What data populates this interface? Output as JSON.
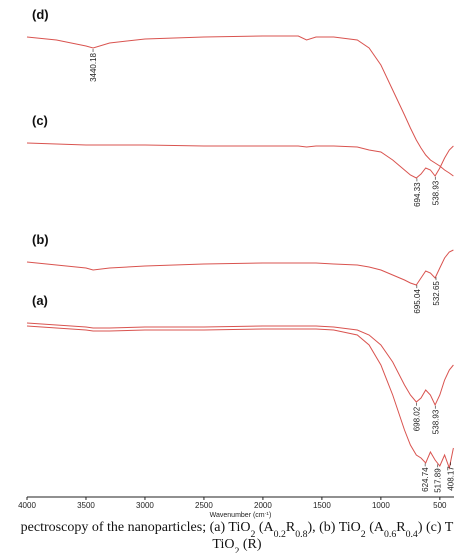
{
  "chart_data": {
    "type": "line",
    "x_label": [
      {
        "text": "Wavenumber (cm"
      },
      {
        "text": "-1",
        "sup": true
      },
      {
        "text": ")"
      }
    ],
    "x": [
      4000,
      3750,
      3500,
      3440,
      3300,
      3000,
      2500,
      2000,
      1700,
      1630,
      1550,
      1400,
      1200,
      1100,
      1000,
      900,
      800,
      750,
      700,
      660,
      620,
      580,
      540,
      500,
      460,
      420,
      385
    ],
    "xlim": [
      4000,
      380
    ],
    "xticks": [
      4000,
      3500,
      3000,
      2500,
      2000,
      1500,
      1000,
      500
    ],
    "ylim": [
      0,
      492
    ],
    "series": [
      {
        "name": "(d)",
        "color": "#d9534f",
        "peaks": [
          3440.18
        ],
        "values": [
          460,
          457,
          451,
          449,
          454,
          458,
          460,
          461,
          461,
          457,
          460,
          460,
          457,
          449,
          432,
          407,
          382,
          369,
          357,
          349,
          342,
          337,
          334,
          331,
          327,
          324,
          321
        ]
      },
      {
        "name": "(c)",
        "color": "#d9534f",
        "peaks": [
          694.33,
          538.93
        ],
        "values": [
          354,
          353,
          352,
          352,
          352,
          352,
          351,
          351,
          351,
          350,
          351,
          351,
          350,
          347,
          345,
          337,
          327,
          322,
          319,
          323,
          329,
          327,
          321,
          329,
          339,
          347,
          351
        ]
      },
      {
        "name": "(b)",
        "color": "#d9534f",
        "peaks": [
          695.04,
          532.65
        ],
        "values": [
          235,
          232,
          229,
          227,
          229,
          231,
          233,
          234,
          234,
          234,
          234,
          233,
          232,
          230,
          227,
          222,
          217,
          214,
          212,
          219,
          226,
          224,
          219,
          229,
          239,
          245,
          247
        ]
      },
      {
        "name": "(a)",
        "color": "#d9534f",
        "peaks": [
          698.02,
          538.93
        ],
        "values": [
          174,
          172,
          170,
          169,
          169,
          170,
          170,
          171,
          171,
          171,
          171,
          170,
          167,
          162,
          152,
          135,
          112,
          102,
          95,
          99,
          107,
          102,
          92,
          102,
          117,
          127,
          132
        ]
      },
      {
        "color": "#d9534f",
        "peaks": [
          624.74,
          517.89,
          408.17
        ],
        "values": [
          171,
          169,
          167,
          166,
          166,
          167,
          167,
          168,
          168,
          168,
          168,
          167,
          162,
          152,
          132,
          102,
          67,
          52,
          42,
          39,
          34,
          45,
          37,
          31,
          42,
          29,
          49
        ]
      }
    ],
    "caption": [
      [
        {
          "text": "pectroscopy of the nanoparticles; (a) TiO"
        },
        {
          "text": "2",
          "sub": true
        },
        {
          "text": " (A"
        },
        {
          "text": "0.2",
          "sub": true
        },
        {
          "text": "R"
        },
        {
          "text": "0.8",
          "sub": true
        },
        {
          "text": "), (b) TiO"
        },
        {
          "text": "2",
          "sub": true
        },
        {
          "text": " (A"
        },
        {
          "text": "0.6",
          "sub": true
        },
        {
          "text": "R"
        },
        {
          "text": "0.4",
          "sub": true
        },
        {
          "text": ") (c) T"
        }
      ],
      [
        {
          "text": "TiO"
        },
        {
          "text": "2",
          "sub": true
        },
        {
          "text": " (R)"
        }
      ]
    ]
  }
}
